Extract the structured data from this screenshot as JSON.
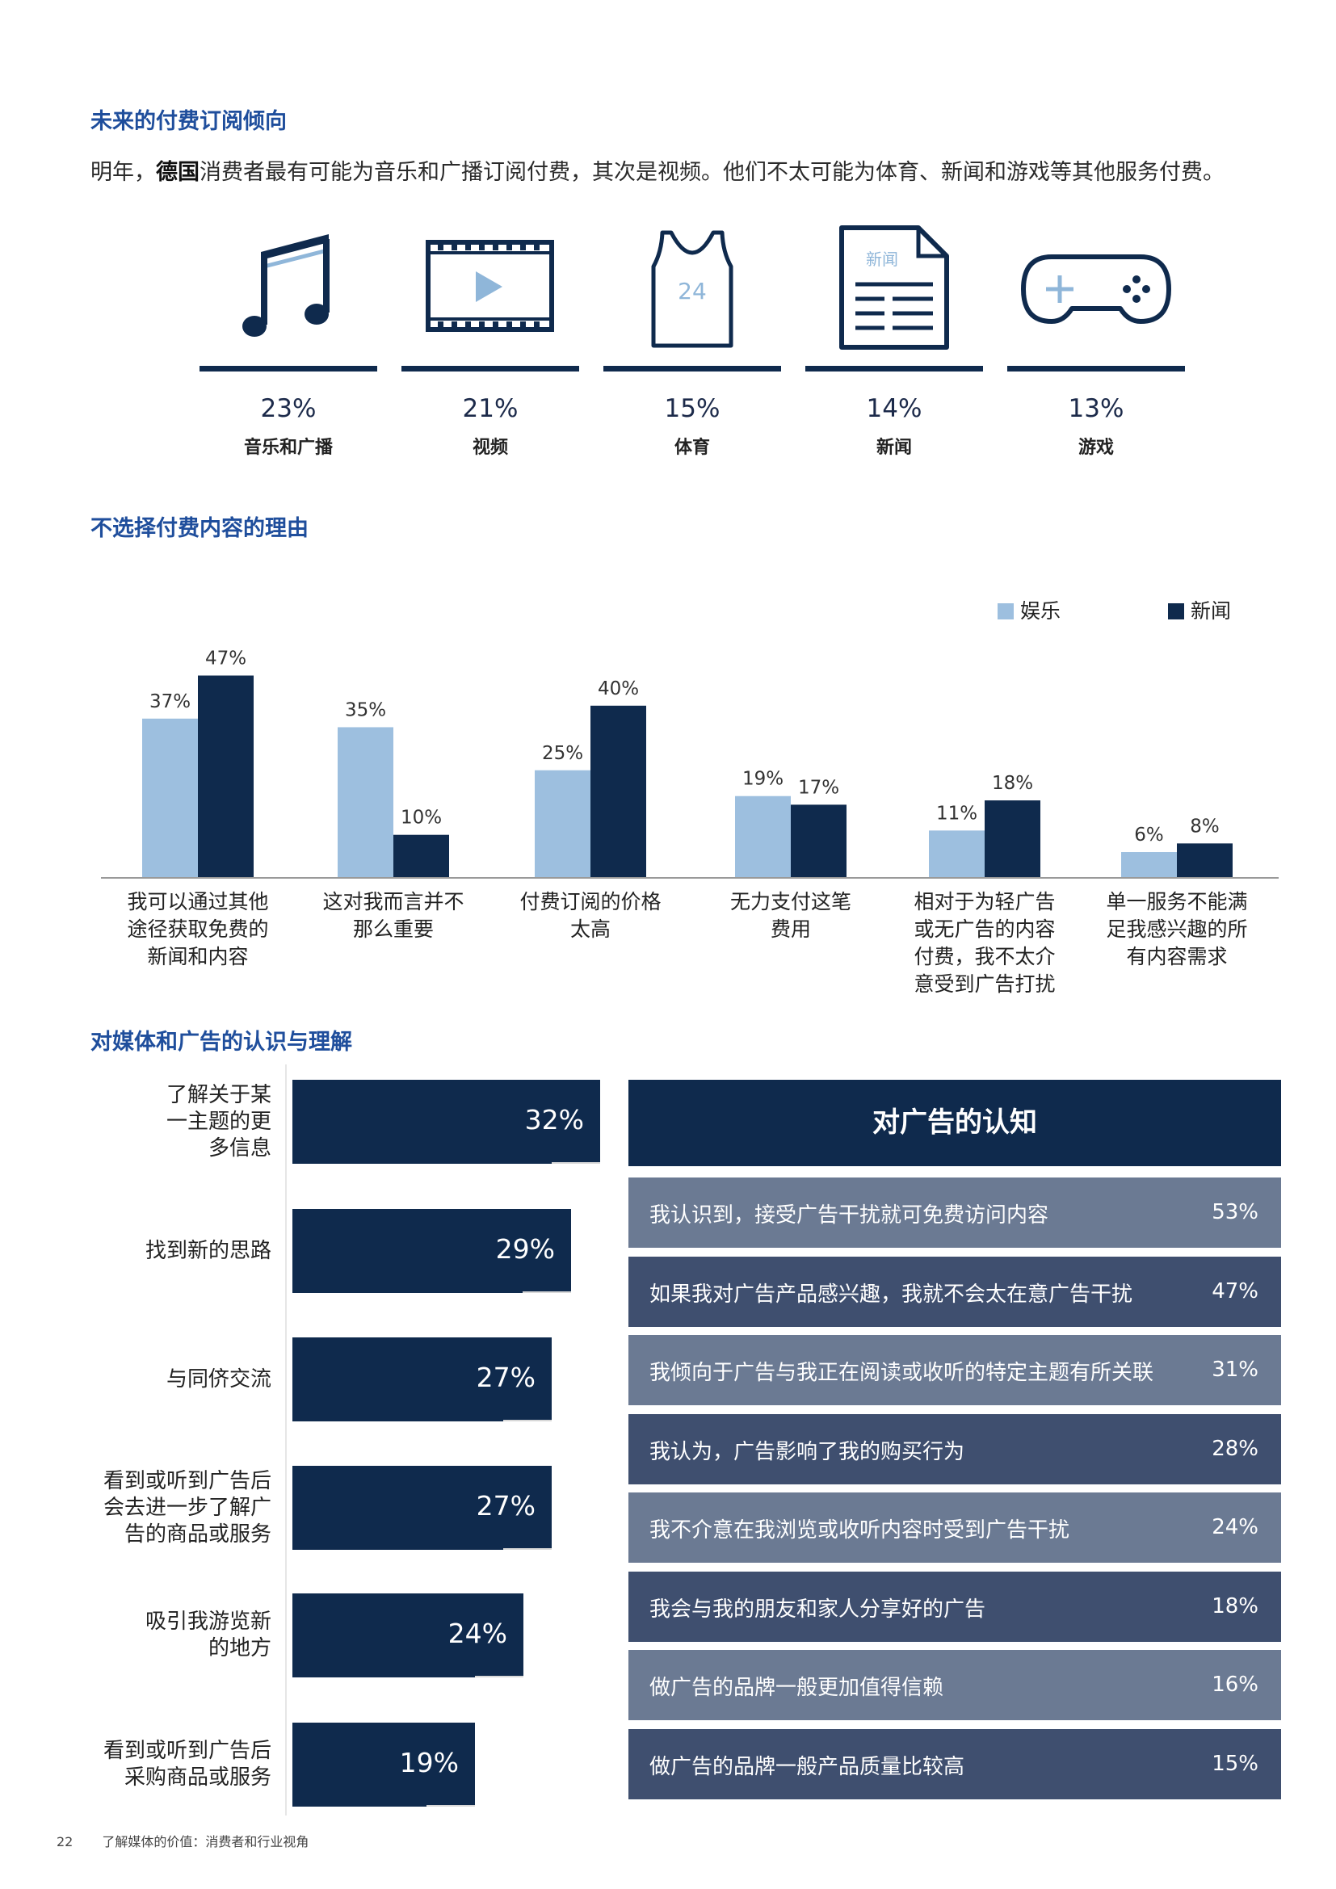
{
  "section1": {
    "title": "未来的付费订阅倾向",
    "intro_pre": "明年，",
    "intro_bold": "德国",
    "intro_post": "消费者最有可能为音乐和广播订阅付费，其次是视频。他们不太可能为体育、新闻和游戏等其他服务付费。"
  },
  "icons": {
    "jersey_number": "24",
    "news_label": "新闻",
    "items": [
      {
        "icon": "music-note-icon",
        "value": "23%",
        "label": "音乐和广播"
      },
      {
        "icon": "video-film-icon",
        "value": "21%",
        "label": "视频"
      },
      {
        "icon": "sports-jersey-icon",
        "value": "15%",
        "label": "体育"
      },
      {
        "icon": "newspaper-icon",
        "value": "14%",
        "label": "新闻"
      },
      {
        "icon": "game-controller-icon",
        "value": "13%",
        "label": "游戏"
      }
    ]
  },
  "section2": {
    "title": "不选择付费内容的理由"
  },
  "section3": {
    "title": "对媒体和广告的认识与理解"
  },
  "colors": {
    "light": "#9dbfdf",
    "dark": "#0f2a4d",
    "row_light": "#6b7a93",
    "row_dark": "#3f4f6f",
    "title": "#1f4e9c"
  },
  "chart_data": [
    {
      "type": "bar",
      "title": "不选择付费内容的理由",
      "categories": [
        "我可以通过其他途径获取免费的新闻和内容",
        "这对我而言并不那么重要",
        "付费订阅的价格太高",
        "无力支付这笔费用",
        "相对于为轻广告或无广告的内容付费，我不太介意受到广告打扰",
        "单一服务不能满足我感兴趣的所有内容需求"
      ],
      "category_lines": [
        [
          "我可以通过其他",
          "途径获取免费的",
          "新闻和内容"
        ],
        [
          "这对我而言并不",
          "那么重要"
        ],
        [
          "付费订阅的价格",
          "太高"
        ],
        [
          "无力支付这笔",
          "费用"
        ],
        [
          "相对于为轻广告",
          "或无广告的内容",
          "付费，我不太介",
          "意受到广告打扰"
        ],
        [
          "单一服务不能满",
          "足我感兴趣的所",
          "有内容需求"
        ]
      ],
      "series": [
        {
          "name": "娱乐",
          "values": [
            37,
            35,
            25,
            19,
            11,
            6
          ],
          "labels": [
            "37%",
            "35%",
            "25%",
            "19%",
            "11%",
            "6%"
          ]
        },
        {
          "name": "新闻",
          "values": [
            47,
            10,
            40,
            17,
            18,
            8
          ],
          "labels": [
            "47%",
            "10%",
            "40%",
            "17%",
            "18%",
            "8%"
          ]
        }
      ],
      "ylim": [
        0,
        50
      ],
      "legend": "top-right",
      "grid": false
    },
    {
      "type": "bar",
      "orientation": "horizontal",
      "categories": [
        "了解关于某一主题的更多信息",
        "找到新的思路",
        "与同侪交流",
        "看到或听到广告后会去进一步了解广告的商品或服务",
        "吸引我游览新的地方",
        "看到或听到广告后采购商品或服务"
      ],
      "category_lines": [
        [
          "了解关于某",
          "一主题的更",
          "多信息"
        ],
        [
          "找到新的思路"
        ],
        [
          "与同侪交流"
        ],
        [
          "看到或听到广告后",
          "会去进一步了解广",
          "告的商品或服务"
        ],
        [
          "吸引我游览新",
          "的地方"
        ],
        [
          "看到或听到广告后",
          "采购商品或服务"
        ]
      ],
      "values": [
        32,
        29,
        27,
        27,
        24,
        19
      ],
      "labels": [
        "32%",
        "29%",
        "27%",
        "27%",
        "24%",
        "19%"
      ]
    },
    {
      "type": "table",
      "title": "对广告的认知",
      "rows": [
        {
          "text": "我认识到，接受广告干扰就可免费访问内容",
          "value": 53,
          "label": "53%"
        },
        {
          "text": "如果我对广告产品感兴趣，我就不会太在意广告干扰",
          "value": 47,
          "label": "47%"
        },
        {
          "text": "我倾向于广告与我正在阅读或收听的特定主题有所关联",
          "value": 31,
          "label": "31%"
        },
        {
          "text": "我认为，广告影响了我的购买行为",
          "value": 28,
          "label": "28%"
        },
        {
          "text": "我不介意在我浏览或收听内容时受到广告干扰",
          "value": 24,
          "label": "24%"
        },
        {
          "text": "我会与我的朋友和家人分享好的广告",
          "value": 18,
          "label": "18%"
        },
        {
          "text": "做广告的品牌一般更加值得信赖",
          "value": 16,
          "label": "16%"
        },
        {
          "text": "做广告的品牌一般产品质量比较高",
          "value": 15,
          "label": "15%"
        }
      ]
    }
  ],
  "footer": {
    "page_number": "22",
    "title": "了解媒体的价值：消费者和行业视角"
  }
}
